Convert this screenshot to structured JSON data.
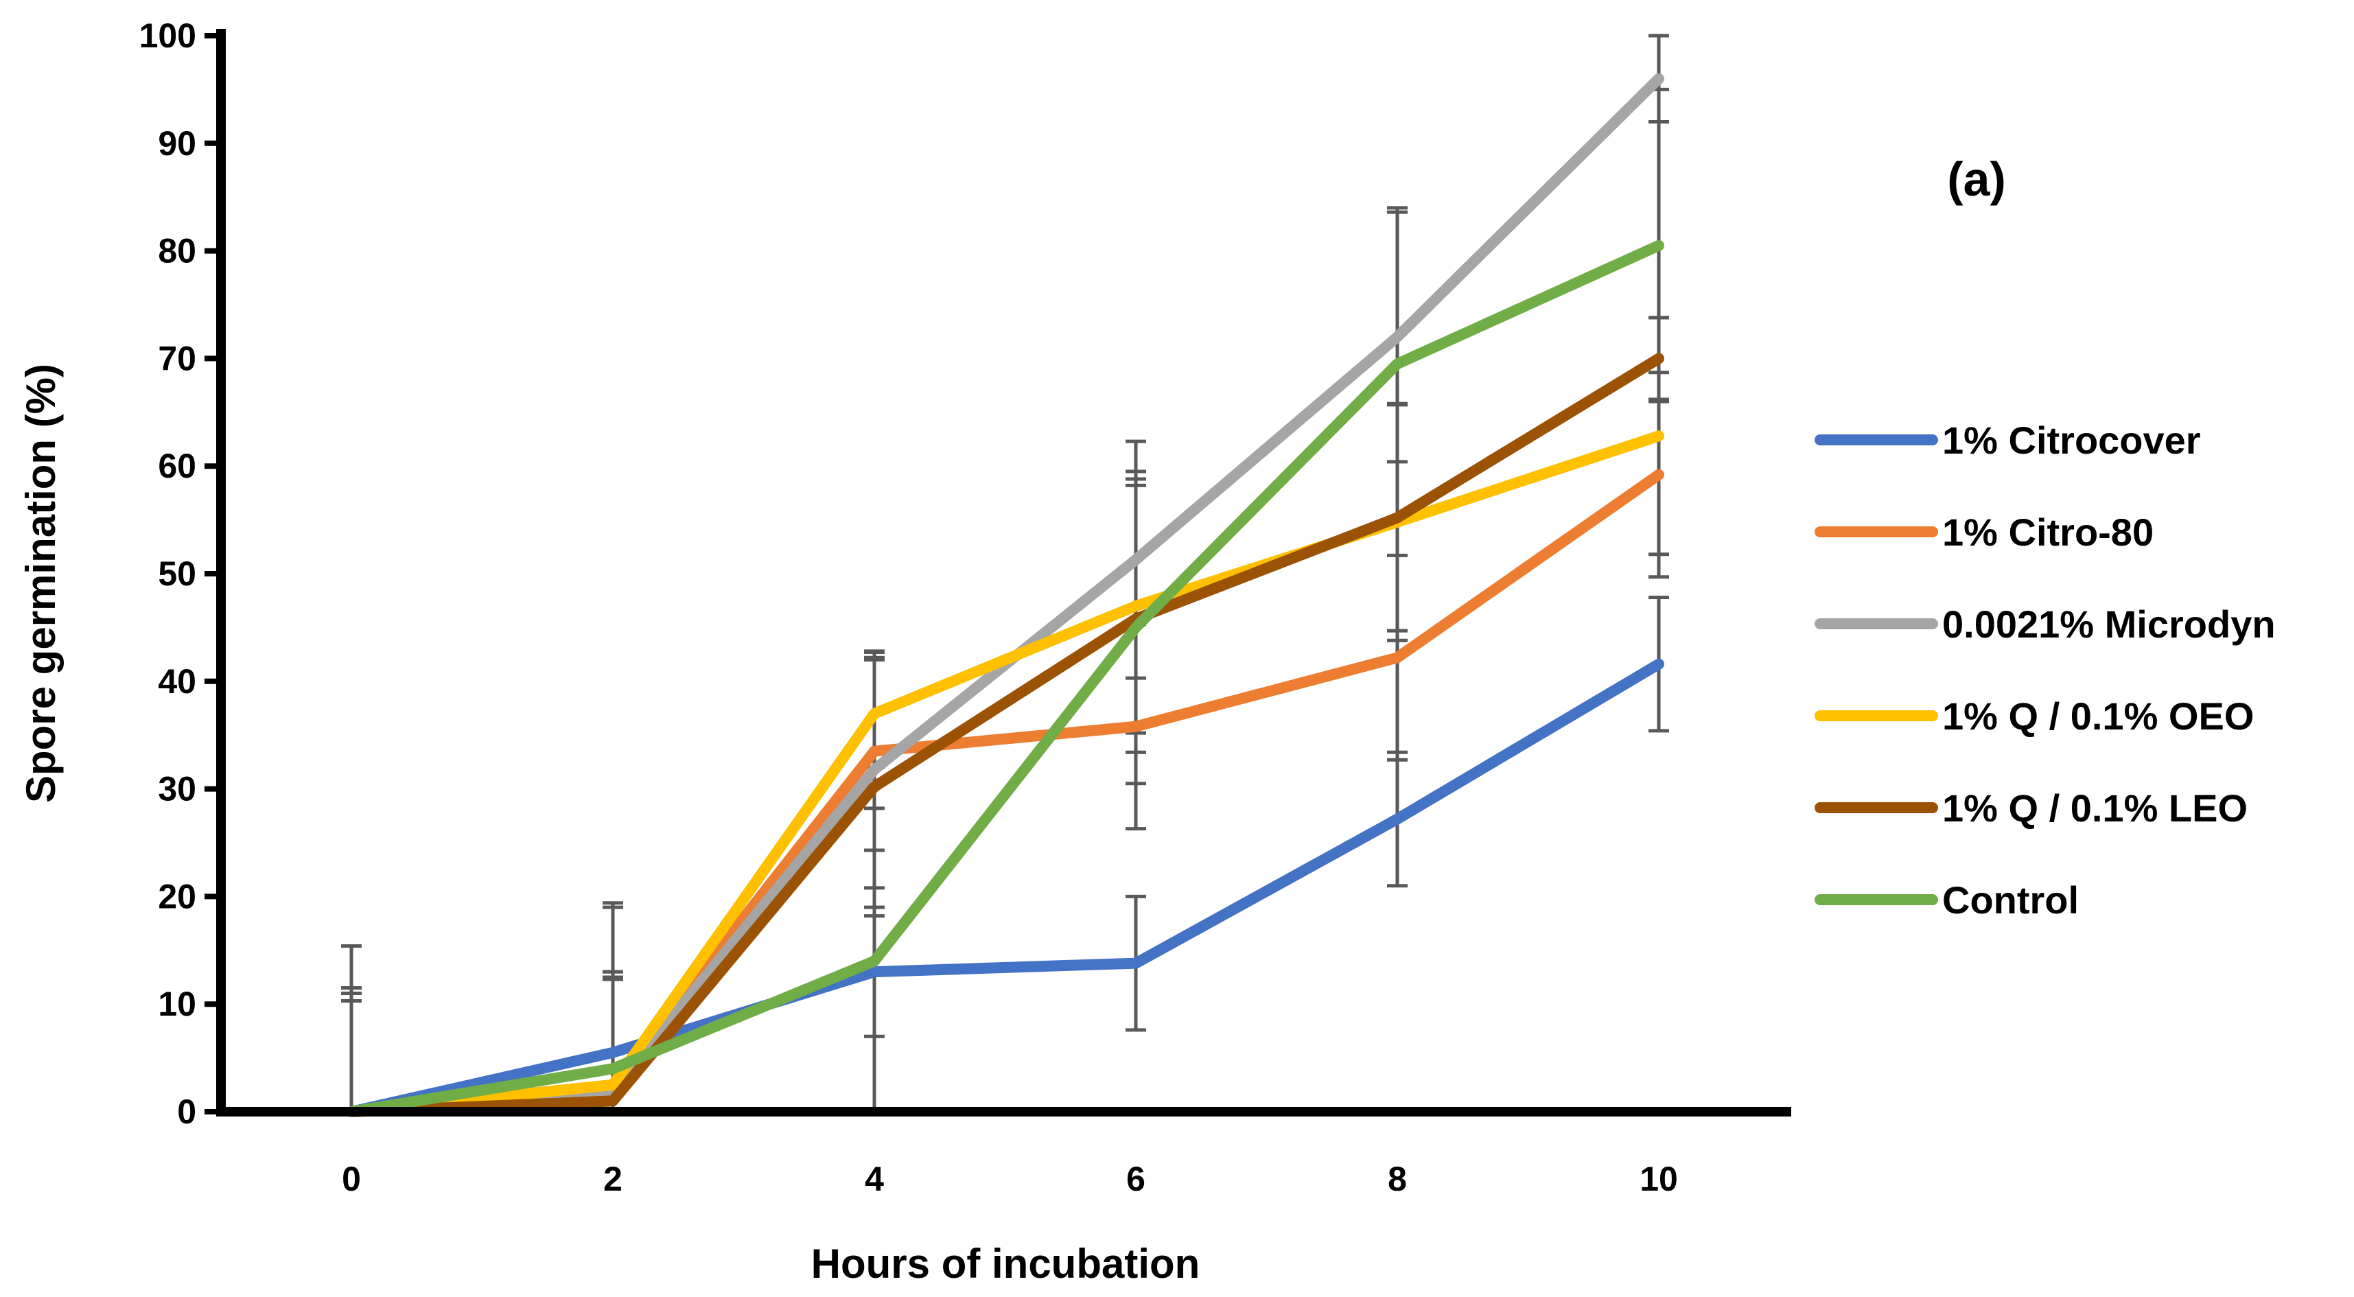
{
  "chart_data": {
    "type": "line",
    "title": "",
    "panel_label": "(a)",
    "xlabel": "Hours of incubation",
    "ylabel": "Spore germination (%)",
    "x": [
      0,
      2,
      4,
      6,
      8,
      10
    ],
    "xticks": [
      "0",
      "2",
      "4",
      "6",
      "8",
      "10"
    ],
    "yticks": [
      "0",
      "10",
      "20",
      "30",
      "40",
      "50",
      "60",
      "70",
      "80",
      "90",
      "100"
    ],
    "ylim": [
      0,
      100
    ],
    "legend_position": "right",
    "series": [
      {
        "name": "1% Citrocover",
        "color": "#4472C4",
        "values": [
          0,
          5.5,
          13,
          13.8,
          27.2,
          41.6
        ],
        "errors": [
          11.5,
          13.5,
          6,
          6.2,
          6.2,
          6.2
        ]
      },
      {
        "name": "1% Citro-80",
        "color": "#ED7D31",
        "values": [
          0,
          2.5,
          33.5,
          35.8,
          42.2,
          59.2
        ],
        "errors": [
          10.3,
          9.8,
          9.2,
          9.5,
          9.5,
          9.5
        ]
      },
      {
        "name": "0.0021% Microdyn",
        "color": "#A5A5A5",
        "values": [
          0,
          2,
          31.8,
          51.3,
          72,
          96
        ],
        "errors": [
          11,
          11,
          11,
          11,
          11.6,
          4
        ]
      },
      {
        "name": "1% Q / 0.1% OEO",
        "color": "#FFC000",
        "values": [
          0,
          2.5,
          37,
          47,
          54.8,
          62.8
        ],
        "errors": [
          11.5,
          10,
          5,
          11.8,
          11,
          11
        ]
      },
      {
        "name": "1% Q / 0.1% LEO",
        "color": "#9C5204",
        "values": [
          0,
          1,
          30.2,
          45.8,
          55.2,
          70
        ],
        "errors": [
          11,
          12,
          12,
          12.4,
          10.5,
          3.8
        ]
      },
      {
        "name": "Control",
        "color": "#70AD47",
        "values": [
          0,
          4,
          14,
          45,
          69.5,
          80.5
        ],
        "errors": [
          15.4,
          15.4,
          14.2,
          14.5,
          14.5,
          14.5
        ]
      }
    ]
  }
}
